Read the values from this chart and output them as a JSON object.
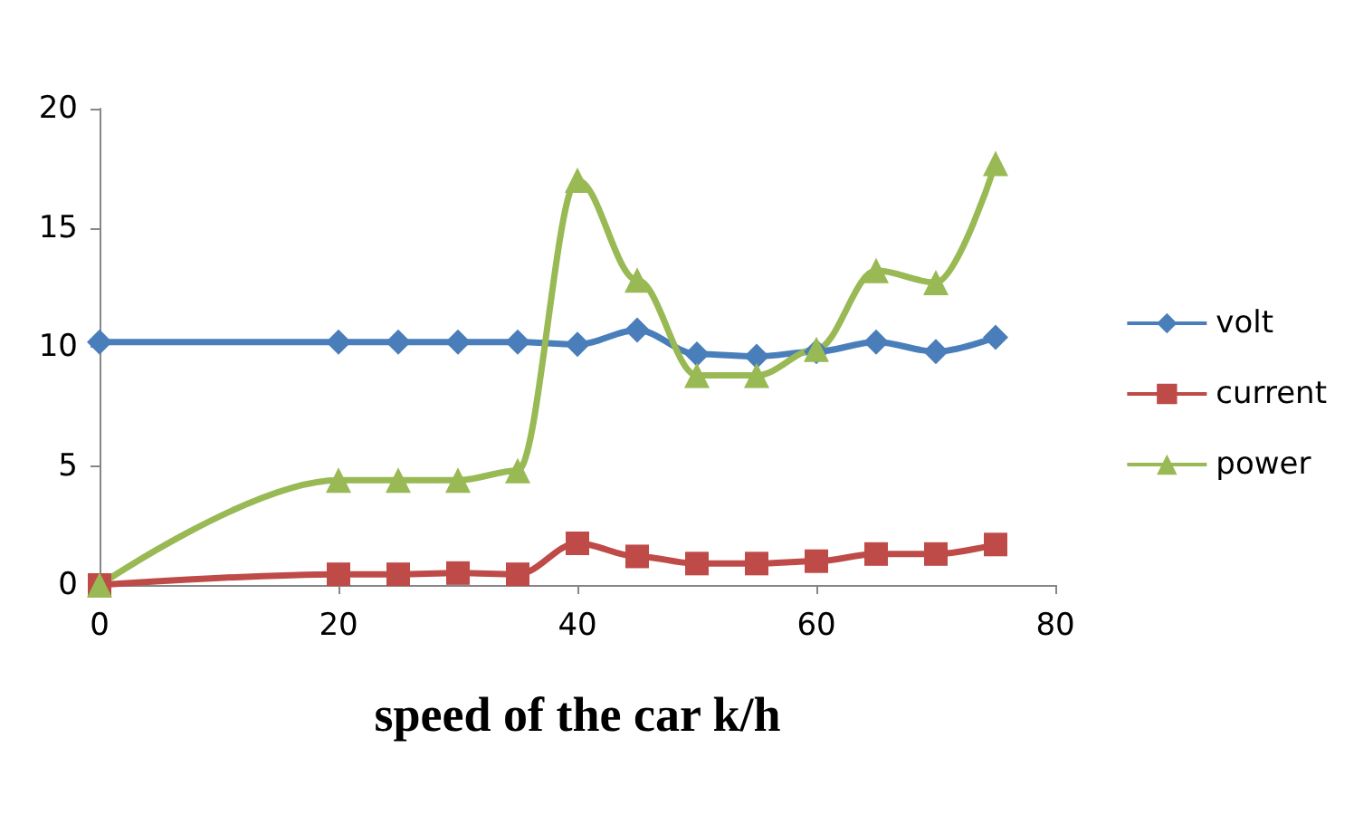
{
  "chart_data": {
    "type": "line",
    "xlabel": "speed of the car k/h",
    "x": [
      0,
      20,
      25,
      30,
      35,
      40,
      45,
      50,
      55,
      60,
      65,
      70,
      75
    ],
    "series": [
      {
        "name": "volt",
        "color": "#4a7ebb",
        "marker": "diamond",
        "values": [
          10.2,
          10.2,
          10.2,
          10.2,
          10.2,
          10.1,
          10.7,
          9.7,
          9.6,
          9.8,
          10.2,
          9.8,
          10.4
        ]
      },
      {
        "name": "current",
        "color": "#be4b48",
        "marker": "square",
        "values": [
          0,
          0.45,
          0.45,
          0.5,
          0.45,
          1.75,
          1.2,
          0.9,
          0.9,
          1.0,
          1.3,
          1.3,
          1.7
        ]
      },
      {
        "name": "power",
        "color": "#98b954",
        "marker": "triangle",
        "values": [
          0,
          4.4,
          4.4,
          4.4,
          4.8,
          17,
          12.8,
          8.8,
          8.8,
          9.9,
          13.2,
          12.7,
          17.7
        ]
      }
    ],
    "xlim": [
      0,
      80
    ],
    "xticks": [
      0,
      20,
      40,
      60,
      80
    ],
    "ylim": [
      0,
      20
    ],
    "yticks": [
      0,
      5,
      10,
      15,
      20
    ],
    "grid": false,
    "legend": "right"
  }
}
